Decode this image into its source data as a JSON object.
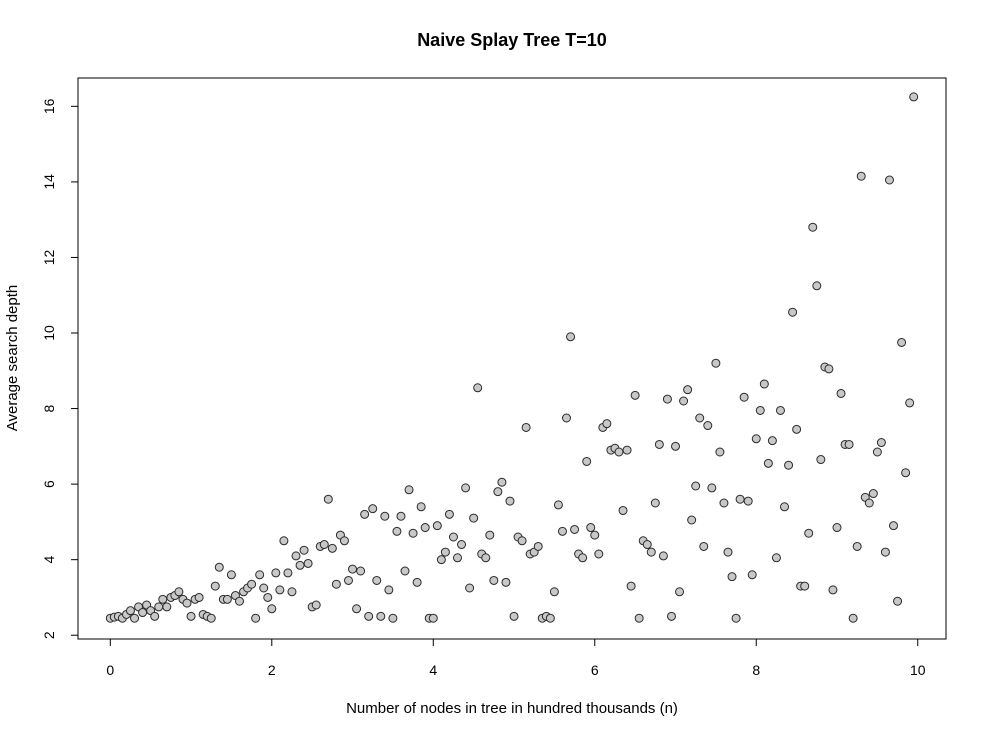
{
  "chart_data": {
    "type": "scatter",
    "title": "Naive Splay Tree T=10",
    "xlabel": "Number of nodes in tree in hundred thousands (n)",
    "ylabel": "Average search depth",
    "xlim": [
      -0.4,
      10.35
    ],
    "ylim": [
      1.9,
      16.75
    ],
    "xticks": [
      0,
      2,
      4,
      6,
      8,
      10
    ],
    "yticks": [
      2,
      4,
      6,
      8,
      10,
      12,
      14,
      16
    ],
    "grid": false,
    "point_color": "#c8c8c8",
    "x": [
      0.0,
      0.05,
      0.1,
      0.15,
      0.2,
      0.25,
      0.3,
      0.35,
      0.4,
      0.45,
      0.5,
      0.55,
      0.6,
      0.65,
      0.7,
      0.75,
      0.8,
      0.85,
      0.9,
      0.95,
      1.0,
      1.05,
      1.1,
      1.15,
      1.2,
      1.25,
      1.3,
      1.35,
      1.4,
      1.45,
      1.5,
      1.55,
      1.6,
      1.65,
      1.7,
      1.75,
      1.8,
      1.85,
      1.9,
      1.95,
      2.0,
      2.05,
      2.1,
      2.15,
      2.2,
      2.25,
      2.3,
      2.35,
      2.4,
      2.45,
      2.5,
      2.55,
      2.6,
      2.65,
      2.7,
      2.75,
      2.8,
      2.85,
      2.9,
      2.95,
      3.0,
      3.05,
      3.1,
      3.15,
      3.2,
      3.25,
      3.3,
      3.35,
      3.4,
      3.45,
      3.5,
      3.55,
      3.6,
      3.65,
      3.7,
      3.75,
      3.8,
      3.85,
      3.9,
      3.95,
      4.0,
      4.05,
      4.1,
      4.15,
      4.2,
      4.25,
      4.3,
      4.35,
      4.4,
      4.45,
      4.5,
      4.55,
      4.6,
      4.65,
      4.7,
      4.75,
      4.8,
      4.85,
      4.9,
      4.95,
      5.0,
      5.05,
      5.1,
      5.15,
      5.2,
      5.25,
      5.3,
      5.35,
      5.4,
      5.45,
      5.5,
      5.55,
      5.6,
      5.65,
      5.7,
      5.75,
      5.8,
      5.85,
      5.9,
      5.95,
      6.0,
      6.05,
      6.1,
      6.15,
      6.2,
      6.25,
      6.3,
      6.35,
      6.4,
      6.45,
      6.5,
      6.55,
      6.6,
      6.65,
      6.7,
      6.75,
      6.8,
      6.85,
      6.9,
      6.95,
      7.0,
      7.05,
      7.1,
      7.15,
      7.2,
      7.25,
      7.3,
      7.35,
      7.4,
      7.45,
      7.5,
      7.55,
      7.6,
      7.65,
      7.7,
      7.75,
      7.8,
      7.85,
      7.9,
      7.95,
      8.0,
      8.05,
      8.1,
      8.15,
      8.2,
      8.25,
      8.3,
      8.35,
      8.4,
      8.45,
      8.5,
      8.55,
      8.6,
      8.65,
      8.7,
      8.75,
      8.8,
      8.85,
      8.9,
      8.95,
      9.0,
      9.05,
      9.1,
      9.15,
      9.2,
      9.25,
      9.3,
      9.35,
      9.4,
      9.45,
      9.5,
      9.55,
      9.6,
      9.65,
      9.7,
      9.75,
      9.8,
      9.85,
      9.9,
      9.95
    ],
    "y": [
      2.45,
      2.48,
      2.5,
      2.45,
      2.55,
      2.65,
      2.45,
      2.75,
      2.6,
      2.8,
      2.65,
      2.5,
      2.75,
      2.95,
      2.75,
      3.0,
      3.05,
      3.15,
      2.95,
      2.85,
      2.5,
      2.95,
      3.0,
      2.55,
      2.5,
      2.45,
      3.3,
      3.8,
      2.95,
      2.95,
      3.6,
      3.05,
      2.9,
      3.15,
      3.25,
      3.35,
      2.45,
      3.6,
      3.25,
      3.0,
      2.7,
      3.65,
      3.2,
      4.5,
      3.65,
      3.15,
      4.1,
      3.85,
      4.25,
      3.9,
      2.75,
      2.8,
      4.35,
      4.4,
      5.6,
      4.3,
      3.35,
      4.65,
      4.5,
      3.45,
      3.75,
      2.7,
      3.7,
      5.2,
      2.5,
      5.35,
      3.45,
      2.5,
      5.15,
      3.2,
      2.45,
      4.75,
      5.15,
      3.7,
      5.85,
      4.7,
      3.4,
      5.4,
      4.85,
      2.45,
      2.45,
      4.9,
      4.0,
      4.2,
      5.2,
      4.6,
      4.05,
      4.4,
      5.9,
      3.25,
      5.1,
      8.55,
      4.15,
      4.05,
      4.65,
      3.45,
      5.8,
      6.05,
      3.4,
      5.55,
      2.5,
      4.6,
      4.5,
      7.5,
      4.15,
      4.2,
      4.35,
      2.45,
      2.5,
      2.45,
      3.15,
      5.45,
      4.75,
      7.75,
      9.9,
      4.8,
      4.15,
      4.05,
      6.6,
      4.85,
      4.65,
      4.15,
      7.5,
      7.6,
      6.9,
      6.95,
      6.85,
      5.3,
      6.9,
      3.3,
      8.35,
      2.45,
      4.5,
      4.4,
      4.2,
      5.5,
      7.05,
      4.1,
      8.25,
      2.5,
      7.0,
      3.15,
      8.2,
      8.5,
      5.05,
      5.95,
      7.75,
      4.35,
      7.55,
      5.9,
      9.2,
      6.85,
      5.5,
      4.2,
      3.55,
      2.45,
      5.6,
      8.3,
      5.55,
      3.6,
      7.2,
      7.95,
      8.65,
      6.55,
      7.15,
      4.05,
      7.95,
      5.4,
      6.5,
      10.55,
      7.45,
      3.3,
      3.3,
      4.7,
      12.8,
      11.25,
      6.65,
      9.1,
      9.05,
      3.2,
      4.85,
      8.4,
      7.05,
      7.05,
      2.45,
      4.35,
      14.15,
      5.65,
      5.5,
      5.75,
      6.85,
      7.1,
      4.2,
      14.05,
      4.9,
      2.9,
      9.75,
      6.3,
      8.15,
      16.25
    ]
  }
}
